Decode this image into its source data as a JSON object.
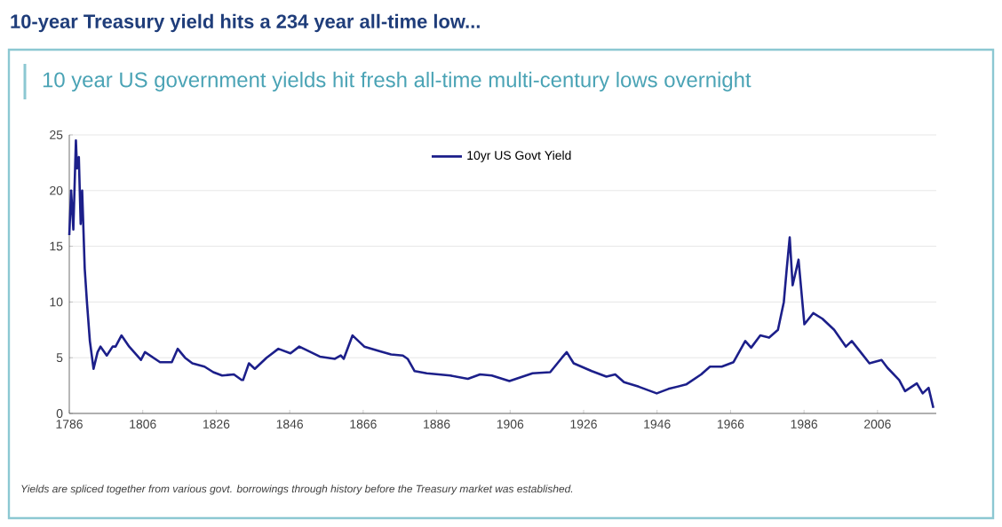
{
  "chart_data": {
    "type": "line",
    "title": "10-year Treasury yield hits a 234 year all-time low...",
    "subtitle": "10 year US government yields hit fresh all-time multi-century lows overnight",
    "annotations": [
      "Yields are spliced together from various govt. borrowings through history before the Treasury market was established."
    ],
    "series": [
      {
        "name": "10yr US Govt Yield",
        "color": "#1c1f8a",
        "x": [
          1786.0,
          1786.5,
          1787.1,
          1787.8,
          1788.1,
          1788.6,
          1789.1,
          1789.5,
          1790.2,
          1790.8,
          1791.6,
          1792.6,
          1793.7,
          1794.5,
          1796.2,
          1797.8,
          1798.6,
          1800.2,
          1802.3,
          1805.5,
          1806.6,
          1810.7,
          1813.9,
          1815.5,
          1817.5,
          1819.5,
          1822.8,
          1825.2,
          1827.6,
          1830.8,
          1832.9,
          1833.3,
          1834.9,
          1836.5,
          1839.7,
          1840.5,
          1842.9,
          1846.2,
          1848.6,
          1854.2,
          1858.3,
          1859.9,
          1860.7,
          1863.1,
          1866.3,
          1870.4,
          1873.6,
          1876.8,
          1878.1,
          1880.0,
          1883.3,
          1889.7,
          1894.5,
          1897.8,
          1901.0,
          1905.8,
          1912.1,
          1916.9,
          1920.1,
          1921.4,
          1923.3,
          1928.2,
          1932.2,
          1934.6,
          1937.0,
          1941.0,
          1945.9,
          1949.1,
          1953.9,
          1958.0,
          1960.4,
          1963.6,
          1966.8,
          1970.0,
          1971.6,
          1974.1,
          1976.5,
          1978.9,
          1980.5,
          1981.3,
          1982.1,
          1982.9,
          1984.5,
          1986.1,
          1988.5,
          1991.0,
          1994.2,
          1997.4,
          1999.0,
          2001.4,
          2003.8,
          2007.1,
          2008.7,
          2011.9,
          2013.5,
          2016.7,
          2018.3,
          2019.9,
          2021.2
        ],
        "values": [
          16,
          20,
          16.5,
          24.5,
          22,
          23,
          17,
          20,
          13,
          10,
          6.5,
          4,
          5.5,
          6,
          5.2,
          6,
          6,
          7,
          6,
          4.8,
          5.5,
          4.6,
          4.6,
          5.8,
          5,
          4.5,
          4.2,
          3.7,
          3.4,
          3.5,
          3.0,
          3.0,
          4.5,
          4.0,
          5.0,
          5.2,
          5.8,
          5.4,
          6.0,
          5.1,
          4.9,
          5.2,
          4.9,
          7.0,
          6.0,
          5.6,
          5.3,
          5.2,
          4.9,
          3.8,
          3.6,
          3.4,
          3.1,
          3.5,
          3.4,
          2.9,
          3.6,
          3.7,
          5.0,
          5.5,
          4.5,
          3.8,
          3.3,
          3.5,
          2.8,
          2.4,
          1.8,
          2.2,
          2.6,
          3.5,
          4.2,
          4.2,
          4.6,
          6.5,
          5.9,
          7.0,
          6.8,
          7.5,
          10,
          13,
          15.8,
          11.5,
          13.8,
          8,
          9,
          8.5,
          7.5,
          6.0,
          6.5,
          5.5,
          4.5,
          4.8,
          4.1,
          3.0,
          2.0,
          2.7,
          1.8,
          2.3,
          0.5
        ]
      }
    ],
    "xlim": [
      1786,
      2022
    ],
    "ylim": [
      0,
      25
    ],
    "xticks": [
      1786,
      1806,
      1826,
      1846,
      1866,
      1886,
      1906,
      1926,
      1946,
      1966,
      1986,
      2006
    ],
    "yticks": [
      0,
      5,
      10,
      15,
      20,
      25
    ],
    "grid": "y",
    "legend": "top",
    "line_style": "solid",
    "marker": "none"
  }
}
